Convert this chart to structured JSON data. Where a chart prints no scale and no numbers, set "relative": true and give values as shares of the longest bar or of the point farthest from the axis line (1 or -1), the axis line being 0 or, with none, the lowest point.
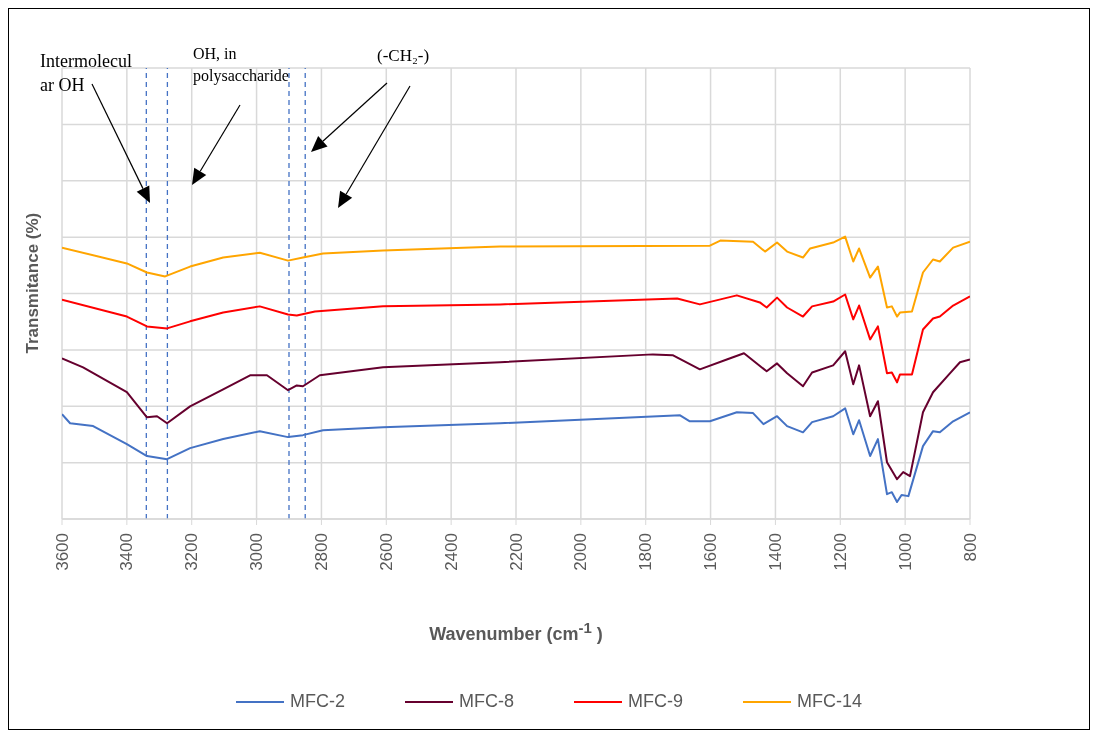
{
  "chart_data": {
    "type": "line",
    "relative": true,
    "xlabel": "Wavenumber (cm$^{-1}$ )",
    "ylabel": "Transmitance (%)",
    "xlim": [
      3600,
      800
    ],
    "xticks": [
      3600,
      3400,
      3200,
      3000,
      2800,
      2600,
      2400,
      2200,
      2000,
      1800,
      1600,
      1400,
      1200,
      1000,
      800
    ],
    "grid": true,
    "legend": "bottom",
    "marker": "none",
    "line_style": "solid",
    "annotations": [
      "Intermolecular OH",
      "OH, in polysaccharide",
      "(-CH₂-)"
    ],
    "ref_lines": [
      {
        "axis": "x",
        "value": 3340,
        "color": "#4472c4",
        "line_style": "dashed"
      },
      {
        "axis": "x",
        "value": 3275,
        "color": "#4472c4",
        "line_style": "dashed"
      },
      {
        "axis": "x",
        "value": 2900,
        "color": "#4472c4",
        "line_style": "dashed"
      },
      {
        "axis": "x",
        "value": 2850,
        "color": "#4472c4",
        "line_style": "dashed"
      }
    ],
    "series": [
      {
        "name": "MFC-2",
        "color": "#4472c4",
        "x": [
          3600,
          3575,
          3504,
          3400,
          3338,
          3276,
          3205,
          3103,
          2990,
          2903,
          2857,
          2795,
          2610,
          2249,
          1694,
          1664,
          1602,
          1519,
          1469,
          1437,
          1395,
          1364,
          1315,
          1287,
          1222,
          1185,
          1160,
          1142,
          1108,
          1084,
          1056,
          1041,
          1025,
          1011,
          990,
          945,
          914,
          893,
          852,
          800
        ],
        "values": [
          0.371,
          0.339,
          0.329,
          0.265,
          0.223,
          0.212,
          0.251,
          0.283,
          0.311,
          0.29,
          0.297,
          0.314,
          0.325,
          0.339,
          0.367,
          0.346,
          0.346,
          0.378,
          0.375,
          0.336,
          0.364,
          0.329,
          0.307,
          0.343,
          0.364,
          0.392,
          0.3,
          0.35,
          0.223,
          0.283,
          0.088,
          0.095,
          0.06,
          0.085,
          0.081,
          0.258,
          0.311,
          0.307,
          0.346,
          0.378
        ]
      },
      {
        "name": "MFC-8",
        "color": "#66002e",
        "x": [
          3600,
          3535,
          3400,
          3338,
          3307,
          3276,
          3205,
          3103,
          3020,
          2968,
          2903,
          2876,
          2857,
          2805,
          2610,
          2249,
          1778,
          1717,
          1633,
          1550,
          1497,
          1427,
          1395,
          1364,
          1315,
          1287,
          1222,
          1185,
          1160,
          1142,
          1108,
          1084,
          1056,
          1025,
          1006,
          985,
          945,
          914,
          862,
          831,
          800
        ],
        "values": [
          0.569,
          0.537,
          0.449,
          0.36,
          0.364,
          0.339,
          0.399,
          0.459,
          0.509,
          0.509,
          0.456,
          0.473,
          0.47,
          0.509,
          0.537,
          0.555,
          0.583,
          0.58,
          0.53,
          0.565,
          0.587,
          0.523,
          0.551,
          0.516,
          0.47,
          0.519,
          0.544,
          0.594,
          0.477,
          0.544,
          0.364,
          0.417,
          0.201,
          0.141,
          0.166,
          0.152,
          0.378,
          0.449,
          0.516,
          0.555,
          0.565
        ]
      },
      {
        "name": "MFC-9",
        "color": "#ff0000",
        "x": [
          3600,
          3400,
          3338,
          3276,
          3205,
          3103,
          2990,
          2903,
          2876,
          2820,
          2610,
          2249,
          1703,
          1633,
          1519,
          1448,
          1427,
          1395,
          1364,
          1315,
          1287,
          1222,
          1185,
          1160,
          1142,
          1108,
          1084,
          1056,
          1041,
          1025,
          1016,
          979,
          945,
          914,
          893,
          852,
          800
        ],
        "values": [
          0.777,
          0.717,
          0.682,
          0.675,
          0.7,
          0.731,
          0.753,
          0.724,
          0.721,
          0.735,
          0.753,
          0.76,
          0.781,
          0.76,
          0.792,
          0.767,
          0.749,
          0.784,
          0.749,
          0.717,
          0.753,
          0.77,
          0.795,
          0.707,
          0.756,
          0.636,
          0.682,
          0.516,
          0.519,
          0.484,
          0.512,
          0.512,
          0.671,
          0.71,
          0.717,
          0.756,
          0.788
        ]
      },
      {
        "name": "MFC-14",
        "color": "#ffa500",
        "x": [
          3600,
          3400,
          3338,
          3282,
          3205,
          3103,
          2990,
          2903,
          2857,
          2795,
          2610,
          2249,
          1602,
          1570,
          1469,
          1432,
          1395,
          1364,
          1315,
          1293,
          1222,
          1185,
          1160,
          1142,
          1108,
          1084,
          1056,
          1041,
          1025,
          1016,
          979,
          945,
          914,
          893,
          852,
          800
        ],
        "values": [
          0.961,
          0.905,
          0.873,
          0.859,
          0.894,
          0.926,
          0.943,
          0.915,
          0.926,
          0.94,
          0.951,
          0.965,
          0.968,
          0.986,
          0.982,
          0.947,
          0.979,
          0.947,
          0.926,
          0.958,
          0.979,
          1.0,
          0.912,
          0.958,
          0.855,
          0.894,
          0.749,
          0.753,
          0.717,
          0.731,
          0.735,
          0.873,
          0.919,
          0.912,
          0.961,
          0.982
        ]
      }
    ]
  }
}
